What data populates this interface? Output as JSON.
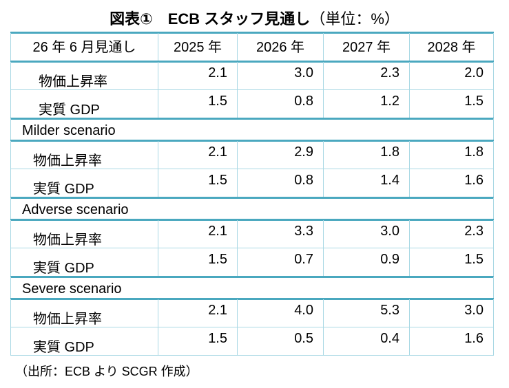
{
  "title": "図表①　ECB スタッフ見通し",
  "unit": "（単位：%）",
  "table": {
    "header": [
      "26 年 6 月見通し",
      "2025 年",
      "2026 年",
      "2027 年",
      "2028 年"
    ],
    "sections": [
      {
        "rows": [
          {
            "label": "物価上昇率",
            "values": [
              "2.1",
              "3.0",
              "2.3",
              "2.0"
            ]
          },
          {
            "label": "実質 GDP",
            "values": [
              "1.5",
              "0.8",
              "1.2",
              "1.5"
            ]
          }
        ]
      },
      {
        "label": "Milder scenario",
        "rows": [
          {
            "label": "物価上昇率",
            "values": [
              "2.1",
              "2.9",
              "1.8",
              "1.8"
            ]
          },
          {
            "label": "実質 GDP",
            "values": [
              "1.5",
              "0.8",
              "1.4",
              "1.6"
            ]
          }
        ]
      },
      {
        "label": "Adverse scenario",
        "rows": [
          {
            "label": "物価上昇率",
            "values": [
              "2.1",
              "3.3",
              "3.0",
              "2.3"
            ]
          },
          {
            "label": "実質 GDP",
            "values": [
              "1.5",
              "0.7",
              "0.9",
              "1.5"
            ]
          }
        ]
      },
      {
        "label": "Severe scenario",
        "rows": [
          {
            "label": "物価上昇率",
            "values": [
              "2.1",
              "4.0",
              "5.3",
              "3.0"
            ]
          },
          {
            "label": "実質 GDP",
            "values": [
              "1.5",
              "0.5",
              "0.4",
              "1.6"
            ]
          }
        ]
      }
    ]
  },
  "source": "（出所：ECB より SCGR 作成）"
}
